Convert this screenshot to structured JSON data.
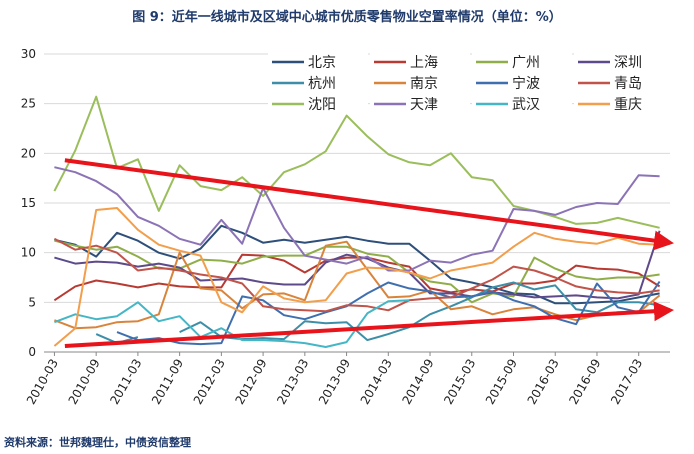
{
  "chart_data": {
    "type": "line",
    "title": "图 9：近年一线城市及区域中心城市优质零售物业空置率情况（单位：%）",
    "source": "资料来源：世邦魏理仕，中债资信整理",
    "ylim": [
      0,
      30
    ],
    "yticks": [
      0,
      5,
      10,
      15,
      20,
      25,
      30
    ],
    "x_labels": [
      "2010-03",
      "2010-09",
      "2011-03",
      "2011-09",
      "2012-03",
      "2012-09",
      "2013-03",
      "2013-09",
      "2014-03",
      "2014-09",
      "2015-03",
      "2015-09",
      "2016-03",
      "2016-09",
      "2017-03"
    ],
    "n_points": 30,
    "legend_placement": "top-right",
    "series": [
      {
        "name": "北京",
        "color": "#2e4f7a",
        "values": [
          11.3,
          10.8,
          9.6,
          12.0,
          11.2,
          10.0,
          9.4,
          10.4,
          12.7,
          12.0,
          11.0,
          11.3,
          11.0,
          11.3,
          11.6,
          11.2,
          10.9,
          10.9,
          9.2,
          7.4,
          7.0,
          6.5,
          5.9,
          5.8,
          4.9,
          4.9,
          5.0,
          5.1,
          5.5,
          5.9
        ]
      },
      {
        "name": "上海",
        "color": "#b83a32",
        "values": [
          5.2,
          6.6,
          7.2,
          6.9,
          6.5,
          6.9,
          6.6,
          6.5,
          6.5,
          9.8,
          9.7,
          9.2,
          8.0,
          9.2,
          9.5,
          9.5,
          9.0,
          8.6,
          6.4,
          6.0,
          6.3,
          6.1,
          6.9,
          6.9,
          7.2,
          8.7,
          8.4,
          8.3,
          7.9,
          6.6
        ]
      },
      {
        "name": "广州",
        "color": "#8fae4a",
        "values": [
          11.2,
          10.7,
          10.3,
          10.6,
          9.6,
          8.4,
          8.4,
          9.3,
          9.2,
          8.9,
          9.6,
          9.7,
          9.7,
          10.6,
          10.6,
          9.9,
          9.6,
          8.0,
          7.1,
          6.8,
          5.0,
          5.9,
          5.6,
          9.5,
          8.4,
          7.6,
          7.3,
          7.5,
          7.5,
          7.8
        ]
      },
      {
        "name": "深圳",
        "color": "#5d4a8a",
        "values": [
          9.5,
          8.9,
          9.1,
          9.0,
          8.6,
          8.9,
          8.5,
          7.2,
          7.3,
          7.4,
          7.0,
          6.8,
          6.8,
          9.0,
          9.8,
          9.4,
          8.5,
          8.0,
          5.9,
          5.9,
          5.6,
          6.0,
          5.8,
          5.5,
          5.6,
          5.7,
          5.5,
          5.4,
          5.8,
          12.2
        ]
      },
      {
        "name": "杭州",
        "color": "#3d8fa8",
        "values": [
          1.5,
          null,
          1.8,
          0.9,
          1.5,
          null,
          2.0,
          3.0,
          1.5,
          1.3,
          1.4,
          1.3,
          3.1,
          2.9,
          3.0,
          1.2,
          1.8,
          2.5,
          3.8,
          4.6,
          5.5,
          6.5,
          7.0,
          6.3,
          6.7,
          4.3,
          4.0,
          5.0,
          5.0,
          4.7
        ]
      },
      {
        "name": "南京",
        "color": "#d9843b",
        "values": [
          3.2,
          2.4,
          2.5,
          3.0,
          3.1,
          3.8,
          10.0,
          6.4,
          6.2,
          4.4,
          5.8,
          5.9,
          5.2,
          10.7,
          11.1,
          8.3,
          5.5,
          5.6,
          6.2,
          4.3,
          4.6,
          3.8,
          4.3,
          4.5,
          3.8,
          3.2,
          3.7,
          4.0,
          4.0,
          5.7
        ]
      },
      {
        "name": "宁波",
        "color": "#3f6faf",
        "values": [
          null,
          null,
          null,
          2.0,
          1.2,
          1.4,
          0.9,
          0.8,
          0.9,
          5.6,
          5.2,
          3.7,
          3.3,
          4.0,
          4.6,
          5.9,
          7.0,
          6.4,
          6.1,
          5.5,
          5.6,
          6.1,
          5.2,
          4.6,
          3.4,
          2.8,
          6.9,
          4.5,
          4.0,
          7.1
        ]
      },
      {
        "name": "青岛",
        "color": "#c0534a",
        "values": [
          11.4,
          10.3,
          10.7,
          10.0,
          8.2,
          8.5,
          8.2,
          7.8,
          7.5,
          6.9,
          4.6,
          4.3,
          4.2,
          4.1,
          4.7,
          4.6,
          4.2,
          5.2,
          5.4,
          5.5,
          6.4,
          7.3,
          8.6,
          8.2,
          7.5,
          6.6,
          6.2,
          6.0,
          5.9,
          6.2
        ]
      },
      {
        "name": "沈阳",
        "color": "#9bbe5c",
        "values": [
          16.2,
          20.3,
          25.7,
          18.5,
          19.4,
          14.2,
          18.8,
          16.7,
          16.3,
          17.6,
          15.7,
          18.1,
          18.9,
          20.2,
          23.8,
          21.7,
          19.9,
          19.1,
          18.8,
          20.0,
          17.6,
          17.3,
          14.7,
          14.2,
          13.6,
          12.9,
          13.0,
          13.5,
          13.0,
          12.5
        ]
      },
      {
        "name": "天津",
        "color": "#8b73b6",
        "values": [
          18.6,
          18.1,
          17.2,
          15.9,
          13.6,
          12.7,
          11.4,
          10.8,
          13.3,
          10.9,
          16.5,
          12.5,
          9.7,
          9.3,
          8.9,
          9.6,
          8.2,
          8.2,
          9.2,
          9.0,
          9.8,
          10.2,
          14.4,
          14.2,
          13.8,
          14.6,
          15.0,
          14.9,
          17.8,
          17.7
        ]
      },
      {
        "name": "武汉",
        "color": "#44b6c6",
        "values": [
          3.0,
          3.8,
          3.3,
          3.6,
          5.0,
          3.1,
          3.6,
          1.5,
          2.4,
          1.2,
          1.2,
          1.1,
          0.9,
          0.5,
          1.0,
          3.9,
          5.1,
          5.2,
          null,
          null,
          null,
          null,
          null,
          null,
          null,
          null,
          null,
          null,
          null,
          null
        ]
      },
      {
        "name": "重庆",
        "color": "#f29e4b",
        "values": [
          0.6,
          2.4,
          14.3,
          14.5,
          12.3,
          10.8,
          10.2,
          9.7,
          5.0,
          4.0,
          6.6,
          5.4,
          5.0,
          5.2,
          7.9,
          8.5,
          8.4,
          8.0,
          7.4,
          8.2,
          8.6,
          9.0,
          10.6,
          12.0,
          11.4,
          11.1,
          10.9,
          11.5,
          10.9,
          10.8
        ]
      }
    ],
    "annotations": [
      {
        "type": "arrow",
        "color": "red",
        "from": {
          "x": 0.5,
          "y": 19.3
        },
        "to": {
          "x": 29.5,
          "y": 11.0
        },
        "meaning": "downtrend"
      },
      {
        "type": "arrow",
        "color": "red",
        "from": {
          "x": 0.5,
          "y": 0.6
        },
        "to": {
          "x": 29.5,
          "y": 4.2
        },
        "meaning": "uptrend"
      }
    ]
  }
}
